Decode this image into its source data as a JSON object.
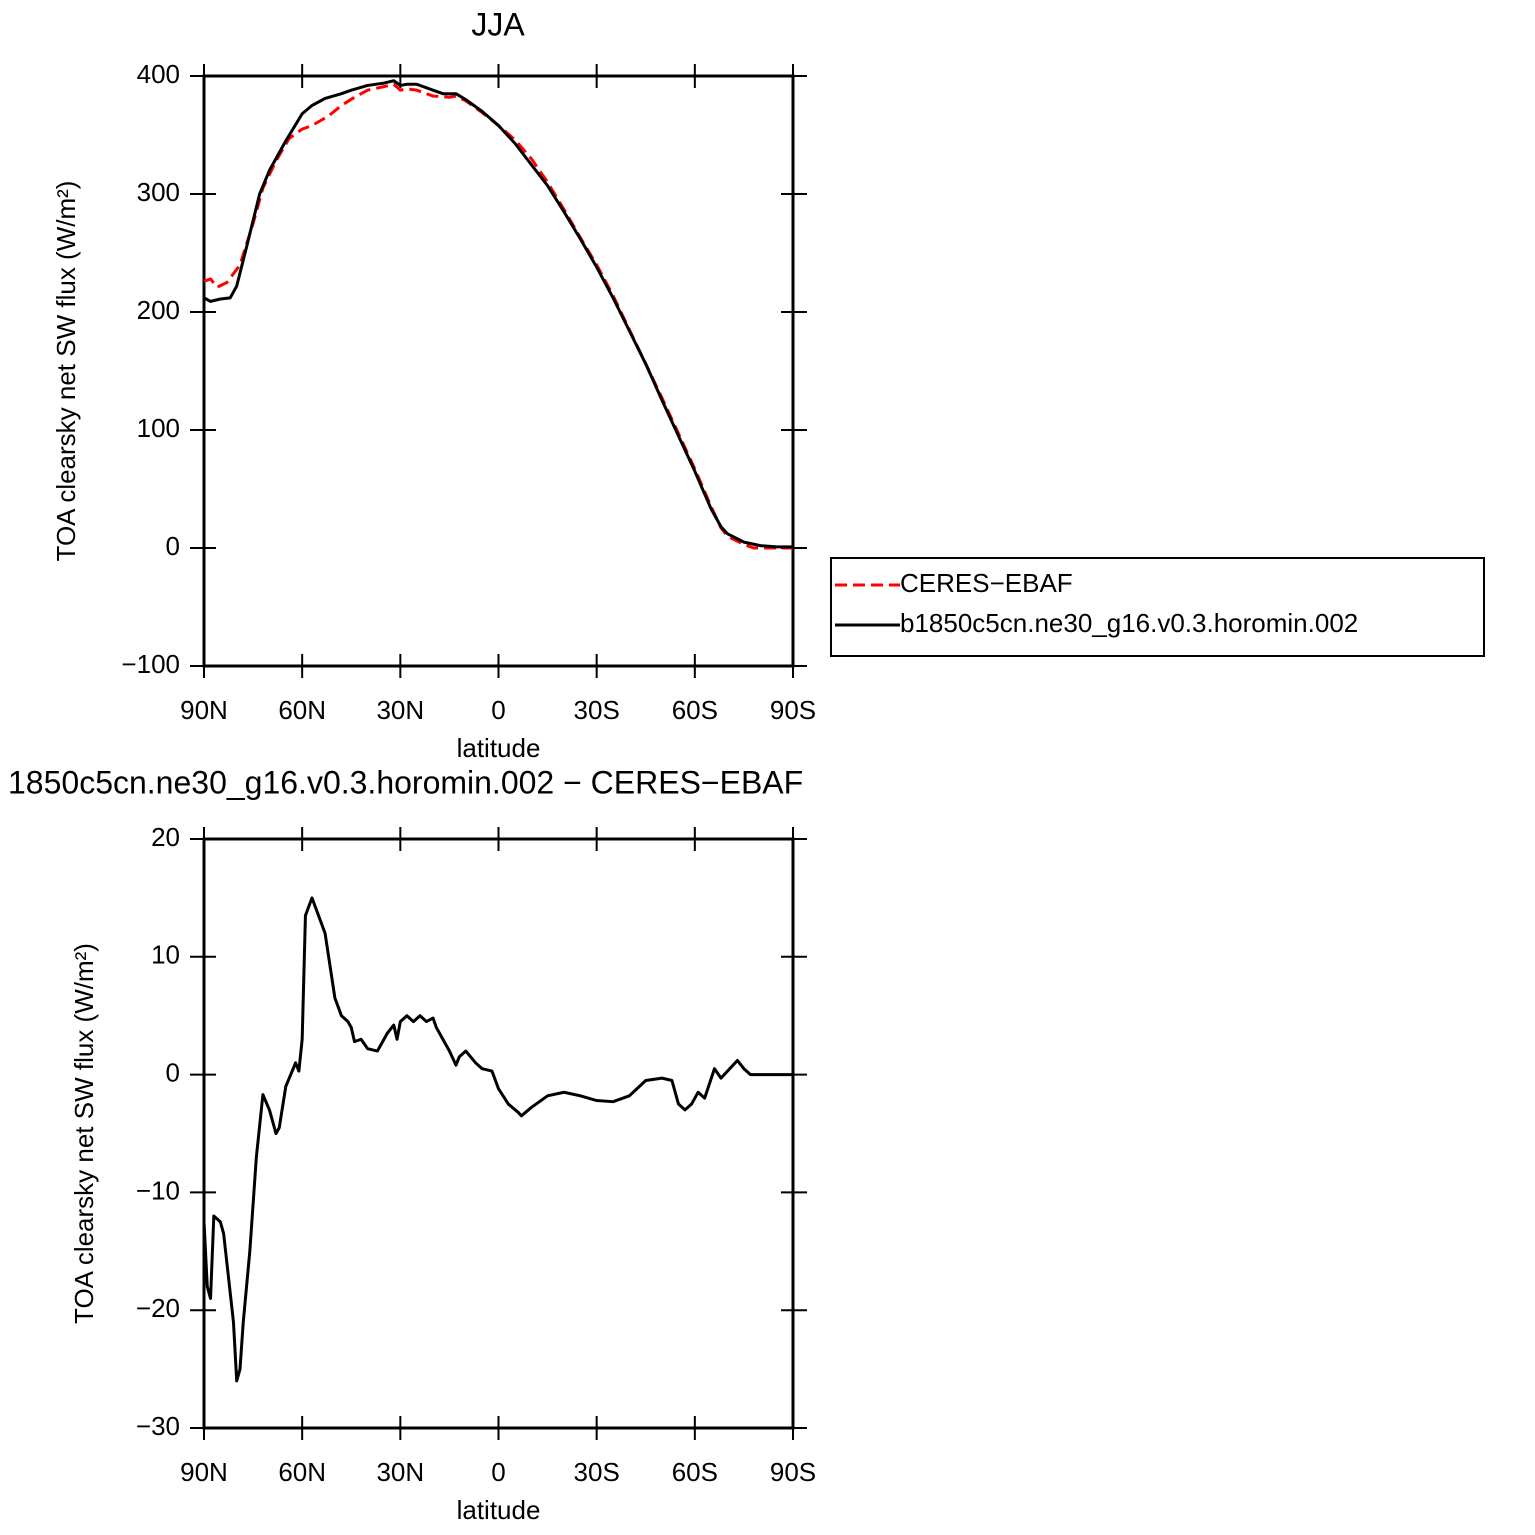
{
  "chart_data": [
    {
      "type": "line",
      "title": "JJA",
      "xlabel": "latitude",
      "ylabel": "TOA clearsky net SW flux (W/m²)",
      "xlim": [
        90,
        -90
      ],
      "xticks": [
        {
          "value": 90,
          "label": "90N"
        },
        {
          "value": 60,
          "label": "60N"
        },
        {
          "value": 30,
          "label": "30N"
        },
        0,
        {
          "value": -30,
          "label": "30S"
        },
        {
          "value": -60,
          "label": "60S"
        },
        {
          "value": -90,
          "label": "90S"
        }
      ],
      "ylim": [
        -100,
        400
      ],
      "yticks": [
        {
          "value": -100,
          "label": "−100"
        },
        0,
        100,
        200,
        300,
        400
      ],
      "legend": "outside-right",
      "series": [
        {
          "name": "CERES−EBAF",
          "color": "#ff0000",
          "linestyle": "dashed",
          "x": [
            90,
            88,
            86,
            83,
            79,
            75,
            72,
            68,
            64,
            60,
            57,
            52,
            48,
            44,
            40,
            35,
            32,
            30,
            28,
            25,
            20,
            15,
            13,
            10,
            5,
            0,
            -5,
            -10,
            -15,
            -20,
            -25,
            -30,
            -35,
            -40,
            -45,
            -50,
            -55,
            -60,
            -65,
            -68,
            -70,
            -75,
            -78,
            -80,
            -90
          ],
          "values": [
            226,
            228,
            221,
            225,
            240,
            275,
            305,
            328,
            347,
            355,
            358,
            366,
            375,
            382,
            388,
            391,
            393,
            388,
            389,
            388,
            383,
            382,
            383,
            379,
            369,
            358,
            346,
            330,
            310,
            287,
            263,
            240,
            214,
            185,
            156,
            127,
            97,
            67,
            35,
            17,
            10,
            3,
            0,
            0,
            0
          ]
        },
        {
          "name": "b1850c5cn.ne30_g16.v0.3.horomin.002",
          "color": "#000000",
          "linestyle": "solid",
          "x": [
            90,
            88,
            85,
            82,
            80,
            77,
            73,
            70,
            65,
            60,
            57,
            53,
            48,
            45,
            40,
            35,
            32,
            30,
            28,
            25,
            20,
            17,
            13,
            10,
            5,
            0,
            -5,
            -10,
            -15,
            -20,
            -25,
            -30,
            -35,
            -40,
            -45,
            -50,
            -55,
            -60,
            -65,
            -68,
            -70,
            -75,
            -80,
            -85,
            -90
          ],
          "values": [
            212,
            209,
            211,
            212,
            222,
            255,
            300,
            320,
            345,
            368,
            375,
            381,
            385,
            388,
            392,
            394,
            396,
            392,
            393,
            393,
            388,
            385,
            385,
            380,
            370,
            358,
            343,
            325,
            307,
            285,
            262,
            238,
            212,
            184,
            156,
            125,
            95,
            65,
            33,
            18,
            12,
            5,
            2,
            1,
            1
          ]
        }
      ]
    },
    {
      "type": "line",
      "title": "1850c5cn.ne30_g16.v0.3.horomin.002 − CERES−EBAF",
      "xlabel": "latitude",
      "ylabel": "TOA clearsky net SW flux (W/m²)",
      "xlim": [
        90,
        -90
      ],
      "xticks": [
        {
          "value": 90,
          "label": "90N"
        },
        {
          "value": 60,
          "label": "60N"
        },
        {
          "value": 30,
          "label": "30N"
        },
        0,
        {
          "value": -30,
          "label": "30S"
        },
        {
          "value": -60,
          "label": "60S"
        },
        {
          "value": -90,
          "label": "90S"
        }
      ],
      "ylim": [
        -30,
        20
      ],
      "yticks": [
        {
          "value": -30,
          "label": "−30"
        },
        {
          "value": -20,
          "label": "−20"
        },
        {
          "value": -10,
          "label": "−10"
        },
        0,
        10,
        20
      ],
      "series": [
        {
          "color": "#000000",
          "linestyle": "solid",
          "x": [
            90,
            89,
            88,
            87,
            85,
            84,
            81,
            80,
            79,
            78,
            76,
            74,
            72,
            70,
            68,
            67,
            65,
            62,
            61,
            60,
            59,
            57,
            55,
            53,
            50,
            48,
            46,
            45,
            44,
            42,
            40,
            37,
            34,
            32,
            31,
            30,
            28,
            26,
            24,
            22,
            20,
            19,
            17,
            15,
            13,
            12,
            10,
            7,
            5,
            2,
            0,
            -3,
            -6,
            -7,
            -10,
            -15,
            -20,
            -25,
            -30,
            -35,
            -40,
            -45,
            -50,
            -53,
            -55,
            -57,
            -59,
            -61,
            -63,
            -66,
            -68,
            -73,
            -75,
            -77,
            -90
          ],
          "values": [
            -12.5,
            -18,
            -19,
            -12,
            -12.5,
            -13.5,
            -21,
            -26,
            -25,
            -21,
            -15,
            -7,
            -1.7,
            -3,
            -5,
            -4.5,
            -1,
            1,
            0.3,
            3,
            13.5,
            15,
            13.5,
            12,
            6.5,
            5,
            4.5,
            4,
            2.8,
            3,
            2.2,
            2,
            3.5,
            4.2,
            3,
            4.5,
            5,
            4.5,
            5,
            4.5,
            4.8,
            4,
            3,
            2,
            0.8,
            1.5,
            2,
            1,
            0.5,
            0.3,
            -1.2,
            -2.5,
            -3.2,
            -3.5,
            -2.8,
            -1.8,
            -1.5,
            -1.8,
            -2.2,
            -2.3,
            -1.8,
            -0.5,
            -0.3,
            -0.5,
            -2.5,
            -3,
            -2.5,
            -1.5,
            -2,
            0.5,
            -0.3,
            1.2,
            0.5,
            0,
            0
          ]
        }
      ]
    }
  ]
}
